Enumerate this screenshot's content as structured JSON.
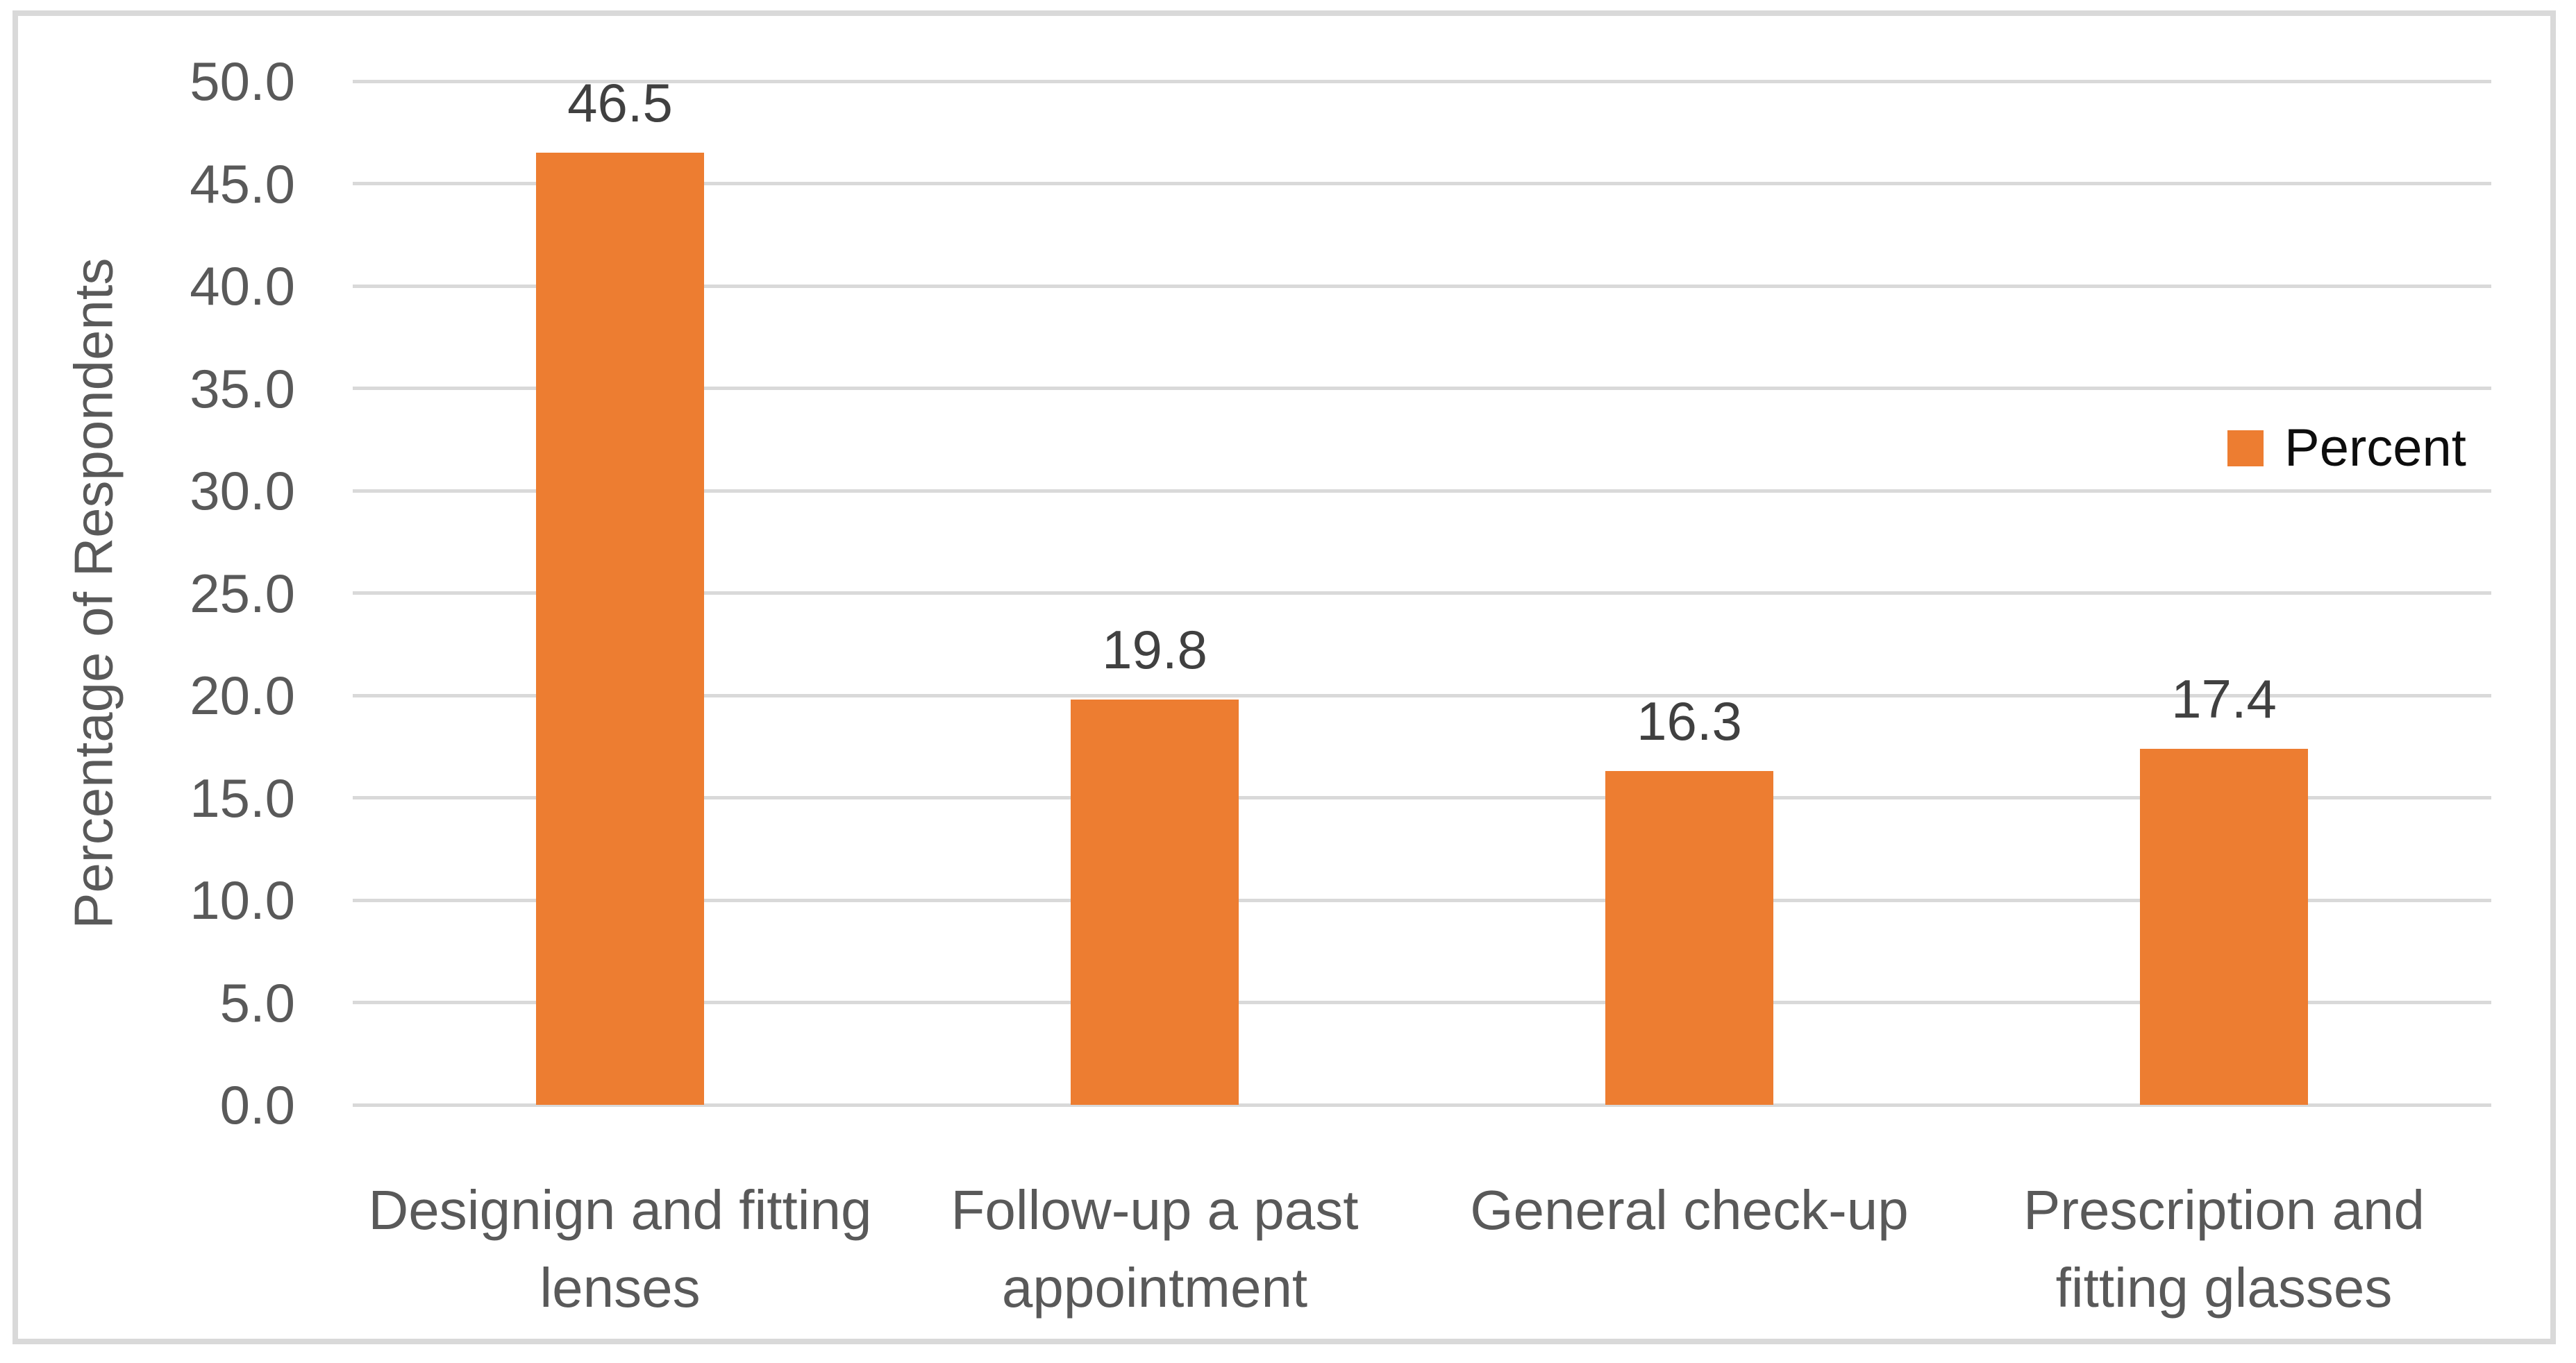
{
  "chart_data": {
    "type": "bar",
    "title": "",
    "categories": [
      "Designign and fitting\nlenses",
      "Follow-up a past\nappointment",
      "General check-up",
      "Prescription and\nfitting glasses"
    ],
    "values": [
      46.5,
      19.8,
      16.3,
      17.4
    ],
    "value_labels": [
      "46.5",
      "19.8",
      "16.3",
      "17.4"
    ],
    "series_name": "Percent",
    "xlabel": "",
    "ylabel": "Percentage of Respondents",
    "ylim": [
      0,
      50
    ],
    "ytick_step": 5,
    "yticks": [
      "0.0",
      "5.0",
      "10.0",
      "15.0",
      "20.0",
      "25.0",
      "30.0",
      "35.0",
      "40.0",
      "45.0",
      "50.0"
    ],
    "grid": true,
    "legend_position": "right"
  },
  "legend": {
    "label": "Percent"
  },
  "colors": {
    "bar": "#ED7D31",
    "gridline": "#D9D9D9",
    "frame_border": "#D9D9D9",
    "axis_text": "#595959",
    "value_label_text": "#404040",
    "legend_text": "#0D0D0D",
    "background": "#FFFFFF"
  }
}
